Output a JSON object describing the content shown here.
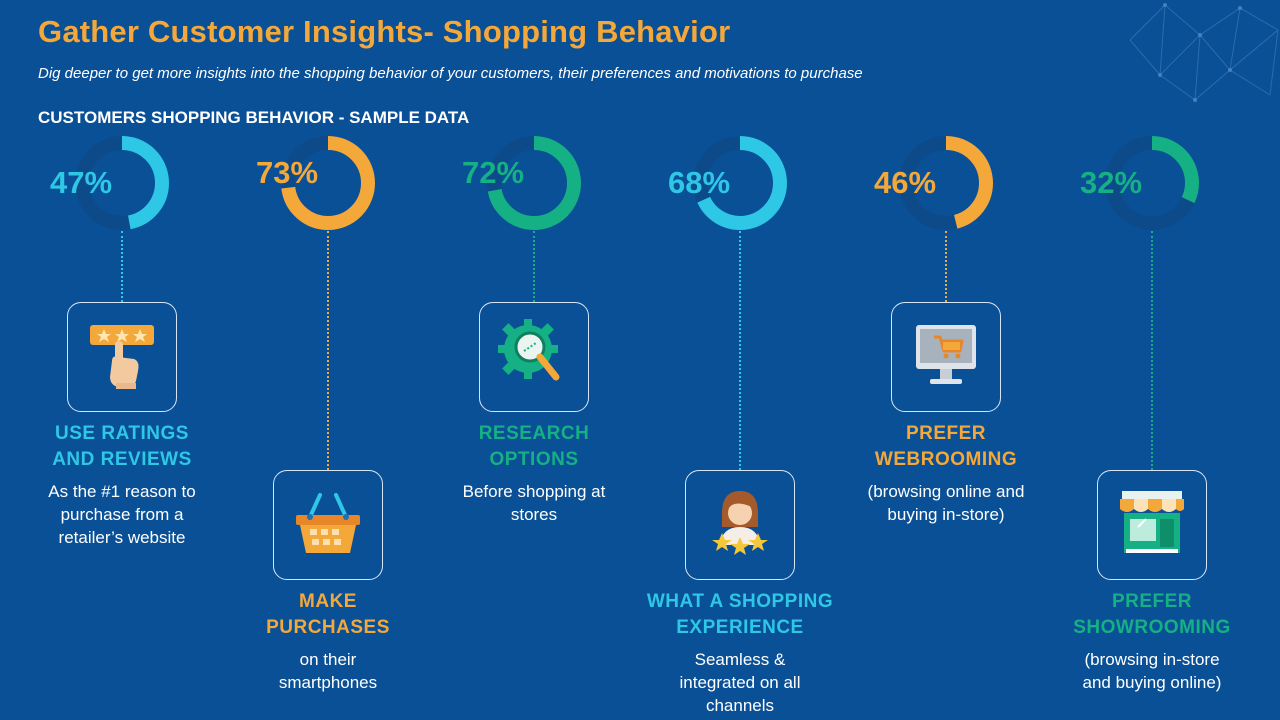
{
  "header": {
    "title": "Gather Customer Insights- Shopping Behavior",
    "subtitle": "Dig deeper to get more insights into the shopping behavior of your customers, their preferences and motivations to purchase",
    "section_title": "CUSTOMERS SHOPPING BEHAVIOR - SAMPLE DATA"
  },
  "colors": {
    "cyan": "#2fc7e6",
    "orange": "#f5a83a",
    "green": "#15b084",
    "dark_ring": "#0d4a8a"
  },
  "items": [
    {
      "percent_value": 47,
      "percent_label": "47%",
      "color": "#2fc7e6",
      "icon": "rating-stars-hand-icon",
      "label_lines": [
        "USE RATINGS",
        "AND REVIEWS"
      ],
      "desc_lines": [
        "As the #1 reason to",
        "purchase from a",
        "retailer’s website"
      ]
    },
    {
      "percent_value": 73,
      "percent_label": "73%",
      "color": "#f5a83a",
      "icon": "shopping-basket-icon",
      "label_lines": [
        "MAKE",
        "PURCHASES"
      ],
      "desc_lines": [
        "on their",
        "smartphones"
      ]
    },
    {
      "percent_value": 72,
      "percent_label": "72%",
      "color": "#15b084",
      "icon": "research-gear-magnifier-icon",
      "label_lines": [
        "RESEARCH",
        "OPTIONS"
      ],
      "desc_lines": [
        "Before shopping at",
        "stores"
      ]
    },
    {
      "percent_value": 68,
      "percent_label": "68%",
      "color": "#2fc7e6",
      "icon": "customer-experience-stars-icon",
      "label_lines": [
        "WHAT A SHOPPING",
        "EXPERIENCE"
      ],
      "desc_lines": [
        "Seamless &",
        "integrated on all",
        "channels"
      ]
    },
    {
      "percent_value": 46,
      "percent_label": "46%",
      "color": "#f5a83a",
      "icon": "monitor-cart-icon",
      "label_lines": [
        "PREFER",
        "WEBROOMING"
      ],
      "desc_lines": [
        "(browsing online and",
        "buying in-store)"
      ]
    },
    {
      "percent_value": 32,
      "percent_label": "32%",
      "color": "#15b084",
      "icon": "storefront-icon",
      "label_lines": [
        "PREFER",
        "SHOWROOMING"
      ],
      "desc_lines": [
        "(browsing in-store",
        "and buying online)"
      ]
    }
  ]
}
